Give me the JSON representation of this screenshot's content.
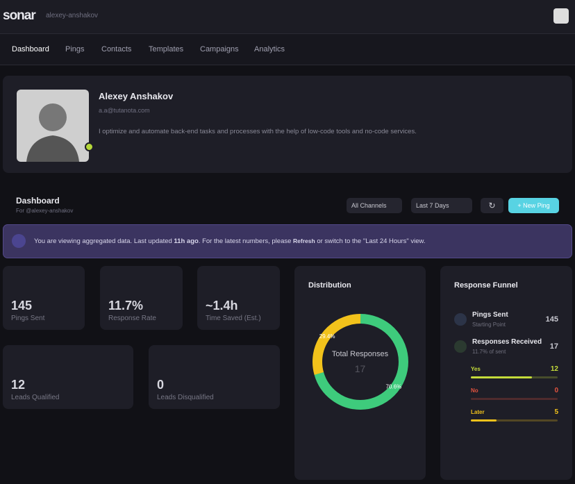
{
  "header": {
    "logo": "sonar",
    "username": "alexey-anshakov"
  },
  "nav": [
    "Dashboard",
    "Pings",
    "Contacts",
    "Templates",
    "Campaigns",
    "Analytics"
  ],
  "profile": {
    "name": "Alexey Anshakov",
    "email": "a.a@tutanota.com",
    "bio": "I optimize and automate back-end tasks and processes with the help of low-code tools and no-code services."
  },
  "dashboard": {
    "title": "Dashboard",
    "subtitle": "For @alexey-anshakov",
    "filters": [
      "All Channels",
      "Last 7 Days"
    ],
    "button": "New Ping"
  },
  "notice": {
    "parts": [
      "You are viewing aggregated data. Last updated ",
      "11h ago",
      ". For the latest numbers, please ",
      "Refresh",
      " or switch to the \"Last 24 Hours\" view."
    ]
  },
  "stats": [
    {
      "value": "145",
      "label": "Pings Sent"
    },
    {
      "value": "11.7%",
      "label": "Response Rate"
    },
    {
      "value": "~1.4h",
      "label": "Time Saved (Est.)"
    },
    {
      "value": "12",
      "label": "Leads Qualified"
    },
    {
      "value": "0",
      "label": "Leads Disqualified"
    }
  ],
  "distribution": {
    "title": "Distribution",
    "center_label": "Total Responses",
    "total": 17,
    "segments": [
      {
        "value": 29.4,
        "label": "29.4%",
        "color": "#f2c21b"
      },
      {
        "value": 70.6,
        "label": "70.6%",
        "color": "#3ecb7c"
      }
    ]
  },
  "funnel": {
    "title": "Response Funnel",
    "steps": [
      {
        "name": "Pings Sent",
        "note": "Starting Point",
        "value": 145
      },
      {
        "name": "Responses Received",
        "note": "11.7% of sent",
        "value": 17
      }
    ],
    "breakdown": [
      {
        "name": "Yes",
        "value": 12,
        "color": "#c5dc3a"
      },
      {
        "name": "No",
        "value": 0,
        "color": "#e2533f"
      },
      {
        "name": "Later",
        "value": 5,
        "color": "#f2c21b"
      }
    ]
  }
}
